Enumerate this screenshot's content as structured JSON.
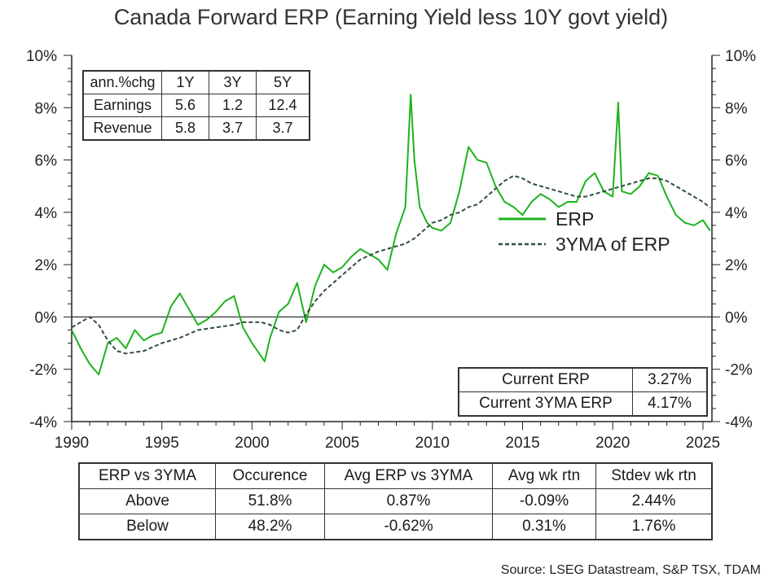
{
  "title": "Canada Forward ERP (Earning Yield less 10Y govt yield)",
  "source": "Source: LSEG Datastream, S&P TSX, TDAM",
  "colors": {
    "erp": "#1db31d",
    "ma": "#2f4f3a",
    "axis": "#222222",
    "zero": "#222222"
  },
  "growth_table": {
    "header": [
      "ann.%chg",
      "1Y",
      "3Y",
      "5Y"
    ],
    "rows": [
      [
        "Earnings",
        "5.6",
        "1.2",
        "12.4"
      ],
      [
        "Revenue",
        "5.8",
        "3.7",
        "3.7"
      ]
    ]
  },
  "current_table": {
    "rows": [
      [
        "Current ERP",
        "3.27%"
      ],
      [
        "Current 3YMA ERP",
        "4.17%"
      ]
    ]
  },
  "stats_table": {
    "header": [
      "ERP vs 3YMA",
      "Occurence",
      "Avg ERP vs 3YMA",
      "Avg wk rtn",
      "Stdev wk rtn"
    ],
    "rows": [
      [
        "Above",
        "51.8%",
        "0.87%",
        "-0.09%",
        "2.44%"
      ],
      [
        "Below",
        "48.2%",
        "-0.62%",
        "0.31%",
        "1.76%"
      ]
    ]
  },
  "chart_data": {
    "type": "line",
    "title": "Canada Forward ERP (Earning Yield less 10Y govt yield)",
    "xlabel": "",
    "ylabel": "",
    "xlim": [
      1990,
      2025.5
    ],
    "ylim": [
      -4,
      10
    ],
    "x_ticks": [
      1990,
      1995,
      2000,
      2005,
      2010,
      2015,
      2020,
      2025
    ],
    "x_tick_labels": [
      "1990",
      "1995",
      "2000",
      "2005",
      "2010",
      "2015",
      "2020",
      "2025"
    ],
    "y_ticks": [
      -4,
      -2,
      0,
      2,
      4,
      6,
      8,
      10
    ],
    "y_tick_labels": [
      "-4%",
      "-2%",
      "0%",
      "2%",
      "4%",
      "6%",
      "8%",
      "10%"
    ],
    "grid": false,
    "legend_position": "right",
    "series": [
      {
        "name": "ERP",
        "style": "solid",
        "x": [
          1990.0,
          1990.5,
          1991.0,
          1991.5,
          1992.0,
          1992.5,
          1993.0,
          1993.5,
          1994.0,
          1994.5,
          1995.0,
          1995.5,
          1996.0,
          1996.5,
          1997.0,
          1997.5,
          1998.0,
          1998.5,
          1999.0,
          1999.5,
          2000.0,
          2000.3,
          2000.7,
          2001.0,
          2001.5,
          2002.0,
          2002.5,
          2003.0,
          2003.5,
          2004.0,
          2004.5,
          2005.0,
          2005.5,
          2006.0,
          2006.5,
          2007.0,
          2007.5,
          2008.0,
          2008.5,
          2008.8,
          2009.0,
          2009.3,
          2009.7,
          2010.0,
          2010.5,
          2011.0,
          2011.5,
          2012.0,
          2012.5,
          2013.0,
          2013.5,
          2014.0,
          2014.5,
          2015.0,
          2015.5,
          2016.0,
          2016.5,
          2017.0,
          2017.5,
          2018.0,
          2018.5,
          2019.0,
          2019.5,
          2020.0,
          2020.3,
          2020.5,
          2021.0,
          2021.5,
          2022.0,
          2022.5,
          2023.0,
          2023.5,
          2024.0,
          2024.5,
          2025.0,
          2025.4
        ],
        "y": [
          -0.5,
          -1.2,
          -1.8,
          -2.2,
          -1.0,
          -0.8,
          -1.2,
          -0.5,
          -0.9,
          -0.7,
          -0.6,
          0.4,
          0.9,
          0.3,
          -0.3,
          -0.1,
          0.2,
          0.6,
          0.8,
          -0.4,
          -1.0,
          -1.3,
          -1.7,
          -0.8,
          0.2,
          0.5,
          1.3,
          -0.2,
          1.2,
          2.0,
          1.7,
          1.9,
          2.3,
          2.6,
          2.4,
          2.2,
          1.8,
          3.2,
          4.2,
          8.5,
          6.0,
          4.2,
          3.6,
          3.4,
          3.3,
          3.6,
          4.8,
          6.5,
          6.0,
          5.9,
          5.0,
          4.4,
          4.2,
          3.9,
          4.4,
          4.7,
          4.5,
          4.2,
          4.4,
          4.4,
          5.2,
          5.5,
          4.8,
          4.6,
          8.2,
          4.8,
          4.7,
          5.0,
          5.5,
          5.4,
          4.6,
          3.9,
          3.6,
          3.5,
          3.7,
          3.3
        ]
      },
      {
        "name": "3YMA of ERP",
        "style": "dashed",
        "x": [
          1990.0,
          1990.5,
          1991.0,
          1991.5,
          1992.0,
          1992.5,
          1993.0,
          1994.0,
          1995.0,
          1996.0,
          1997.0,
          1998.0,
          1999.0,
          1999.5,
          2000.0,
          2000.5,
          2001.0,
          2001.5,
          2002.0,
          2002.5,
          2003.0,
          2003.5,
          2004.0,
          2005.0,
          2006.0,
          2007.0,
          2008.0,
          2008.5,
          2009.0,
          2009.5,
          2010.0,
          2010.5,
          2011.0,
          2011.5,
          2012.0,
          2012.5,
          2013.0,
          2013.5,
          2014.0,
          2014.5,
          2015.0,
          2015.5,
          2016.0,
          2016.5,
          2017.0,
          2017.5,
          2018.0,
          2018.5,
          2019.0,
          2019.5,
          2020.0,
          2020.5,
          2021.0,
          2021.5,
          2022.0,
          2022.5,
          2023.0,
          2023.5,
          2024.0,
          2024.5,
          2025.0,
          2025.4
        ],
        "y": [
          -0.4,
          -0.2,
          0.0,
          -0.3,
          -0.9,
          -1.3,
          -1.4,
          -1.3,
          -1.0,
          -0.8,
          -0.5,
          -0.4,
          -0.3,
          -0.2,
          -0.2,
          -0.2,
          -0.3,
          -0.5,
          -0.6,
          -0.5,
          0.1,
          0.6,
          1.0,
          1.6,
          2.2,
          2.5,
          2.7,
          2.8,
          3.0,
          3.3,
          3.6,
          3.7,
          3.9,
          4.0,
          4.2,
          4.3,
          4.6,
          4.9,
          5.2,
          5.4,
          5.3,
          5.1,
          5.0,
          4.9,
          4.8,
          4.7,
          4.6,
          4.6,
          4.7,
          4.8,
          4.9,
          5.0,
          5.1,
          5.2,
          5.3,
          5.3,
          5.2,
          5.0,
          4.8,
          4.6,
          4.4,
          4.17
        ]
      }
    ]
  }
}
